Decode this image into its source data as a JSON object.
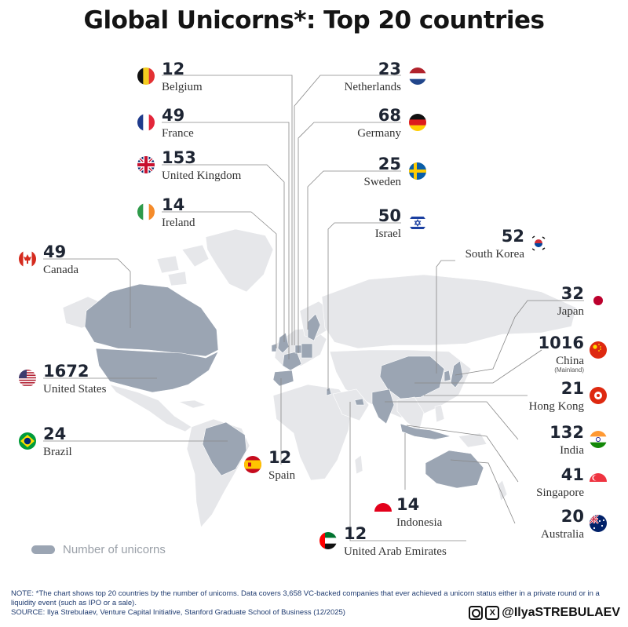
{
  "title": "Global Unicorns*: Top 20 countries",
  "legend_label": "Number of unicorns",
  "note": "NOTE: *The chart shows top 20 countries by the number of unicorns. Data covers 3,658 VC-backed companies that ever achieved a  unicorn status either in a private round or in a liquidity event (such as IPO or a sale).",
  "source": "SOURCE: Ilya Strebulaev, Venture Capital Initiative, Stanford Graduate School of Business (12/2025)",
  "brand": {
    "handle": "@IlyaSTREBULAEV",
    "icons": [
      "instagram-icon",
      "x-icon"
    ]
  },
  "colors": {
    "map_highlight": "#9ba5b3",
    "map_base": "#e6e7ea",
    "number": "#1e2533",
    "leader_line": "#888888"
  },
  "chart_data": {
    "type": "bar",
    "title": "Global Unicorns*: Top 20 countries",
    "unit": "Number of unicorns",
    "categories": [
      "United States",
      "China",
      "United Kingdom",
      "India",
      "South Korea",
      "Israel",
      "Canada",
      "France",
      "Germany",
      "Singapore",
      "Japan",
      "Brazil",
      "Sweden",
      "Netherlands",
      "Hong Kong",
      "Australia",
      "Ireland",
      "Indonesia",
      "Belgium",
      "Spain",
      "United Arab Emirates"
    ],
    "values": [
      1672,
      1016,
      153,
      132,
      52,
      50,
      49,
      49,
      68,
      41,
      32,
      24,
      25,
      23,
      21,
      20,
      14,
      14,
      12,
      12,
      12
    ],
    "countries": [
      {
        "name": "Belgium",
        "value": 12
      },
      {
        "name": "Netherlands",
        "value": 23
      },
      {
        "name": "France",
        "value": 49
      },
      {
        "name": "Germany",
        "value": 68
      },
      {
        "name": "United Kingdom",
        "value": 153
      },
      {
        "name": "Sweden",
        "value": 25
      },
      {
        "name": "Ireland",
        "value": 14
      },
      {
        "name": "Israel",
        "value": 50
      },
      {
        "name": "South Korea",
        "value": 52
      },
      {
        "name": "Canada",
        "value": 49
      },
      {
        "name": "Japan",
        "value": 32
      },
      {
        "name": "China",
        "value": 1016,
        "sublabel": "(Mainland)"
      },
      {
        "name": "United States",
        "value": 1672
      },
      {
        "name": "Hong Kong",
        "value": 21
      },
      {
        "name": "Brazil",
        "value": 24
      },
      {
        "name": "Spain",
        "value": 12
      },
      {
        "name": "India",
        "value": 132
      },
      {
        "name": "Singapore",
        "value": 41
      },
      {
        "name": "Indonesia",
        "value": 14
      },
      {
        "name": "Australia",
        "value": 20
      },
      {
        "name": "United Arab Emirates",
        "value": 12
      }
    ]
  }
}
